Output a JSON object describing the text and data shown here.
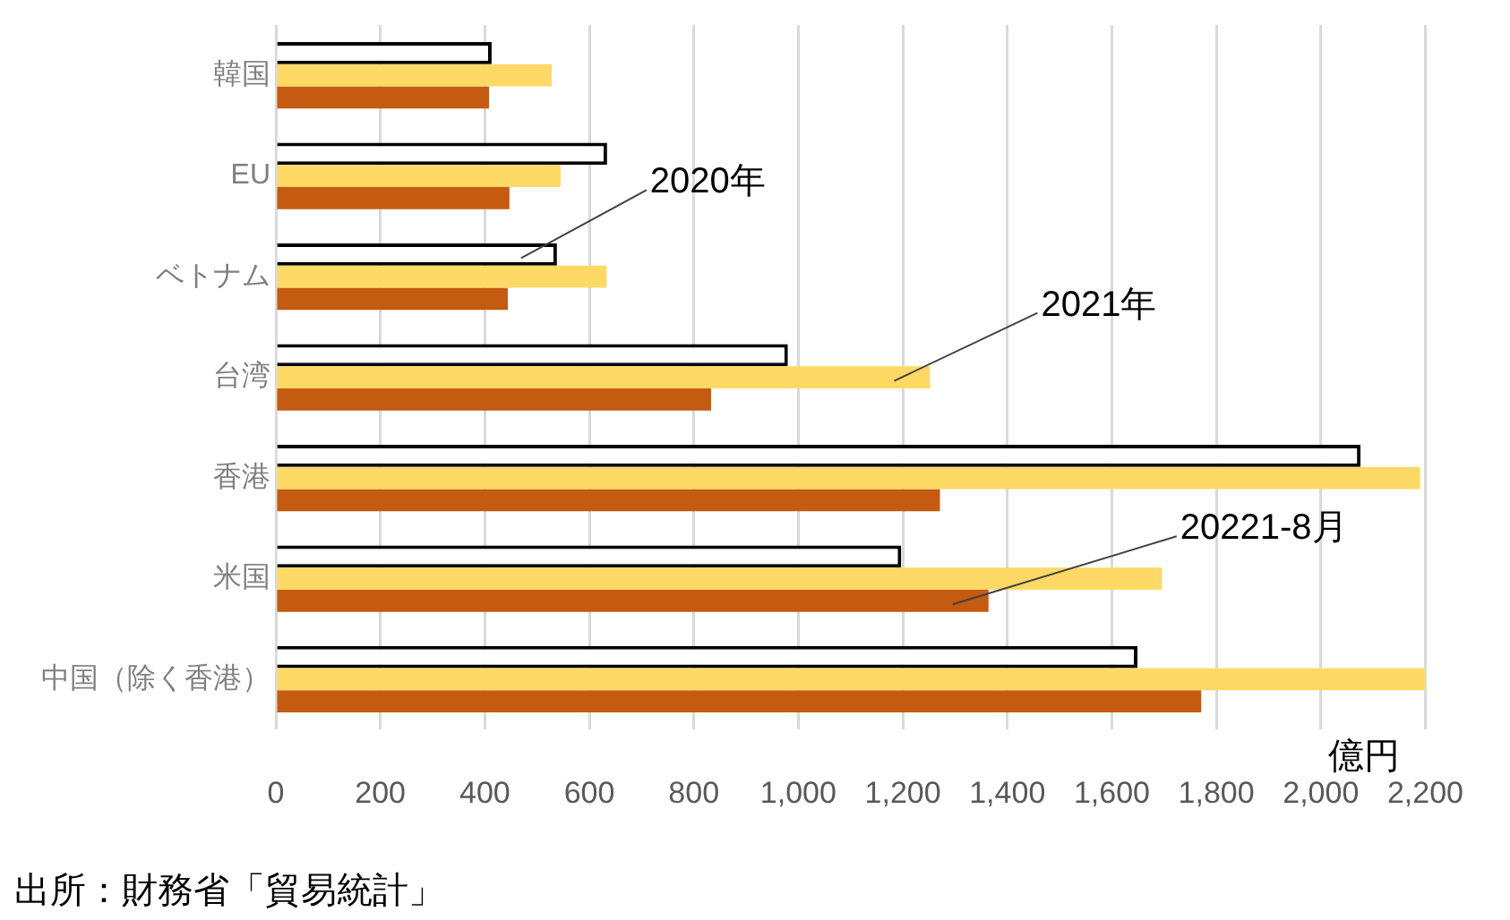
{
  "chart_data": {
    "type": "bar",
    "orientation": "horizontal",
    "xlabel": "億円",
    "categories": [
      "韓国",
      "EU",
      "ベトナム",
      "台湾",
      "香港",
      "米国",
      "中国（除く香港）"
    ],
    "series": [
      {
        "name": "2020年",
        "color": "#ffffff",
        "values": [
          413,
          634,
          538,
          980,
          2076,
          1197,
          1649
        ]
      },
      {
        "name": "2021年",
        "color": "#ffd966",
        "values": [
          528,
          545,
          633,
          1252,
          2190,
          1696,
          2200
        ]
      },
      {
        "name": "20221-8月",
        "color": "#c55a11",
        "values": [
          408,
          447,
          444,
          833,
          1271,
          1364,
          1771
        ]
      }
    ],
    "xlim": [
      0,
      2200
    ],
    "xticks": [
      {
        "value": 0,
        "label": "0"
      },
      {
        "value": 200,
        "label": "200"
      },
      {
        "value": 400,
        "label": "400"
      },
      {
        "value": 600,
        "label": "600"
      },
      {
        "value": 800,
        "label": "800"
      },
      {
        "value": 1000,
        "label": "1,000"
      },
      {
        "value": 1200,
        "label": "1,200"
      },
      {
        "value": 1400,
        "label": "1,400"
      },
      {
        "value": 1600,
        "label": "1,600"
      },
      {
        "value": 1800,
        "label": "1,800"
      },
      {
        "value": 2000,
        "label": "2,000"
      },
      {
        "value": 2200,
        "label": "2,200"
      }
    ],
    "grid": "x",
    "legend": false,
    "annotations": [
      "出所：財務省「貿易統計」"
    ]
  }
}
